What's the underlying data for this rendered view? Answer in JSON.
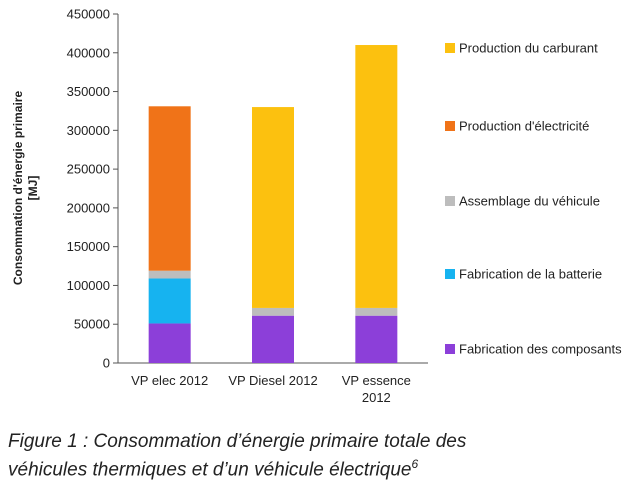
{
  "chart_data": {
    "type": "bar",
    "stacked": true,
    "ylabel": "Consommation d'énergie primaire [MJ]",
    "ylim": [
      0,
      450000
    ],
    "yticks": [
      0,
      50000,
      100000,
      150000,
      200000,
      250000,
      300000,
      350000,
      400000,
      450000
    ],
    "grid": false,
    "legend_position": "right",
    "categories": [
      [
        "VP elec 2012"
      ],
      [
        "VP Diesel 2012"
      ],
      [
        "VP essence",
        "2012"
      ]
    ],
    "series": [
      {
        "name": "Fabrication des composants",
        "color": "#8C3FD9",
        "values": [
          51000,
          61000,
          61000
        ]
      },
      {
        "name": "Fabrication de la batterie",
        "color": "#16B3F0",
        "values": [
          58000,
          0,
          0
        ]
      },
      {
        "name": "Assemblage du véhicule",
        "color": "#BDBDBD",
        "values": [
          10000,
          10000,
          10000
        ]
      },
      {
        "name": "Production d'électricité",
        "color": "#F07318",
        "values": [
          212000,
          0,
          0
        ]
      },
      {
        "name": "Production du carburant",
        "color": "#FCC10F",
        "values": [
          0,
          259000,
          339000
        ]
      }
    ]
  },
  "caption": {
    "line1": "Figure 1 : Consommation d’énergie primaire totale des",
    "line2": "véhicules thermiques et d’un véhicule électrique",
    "footnote": "6"
  }
}
